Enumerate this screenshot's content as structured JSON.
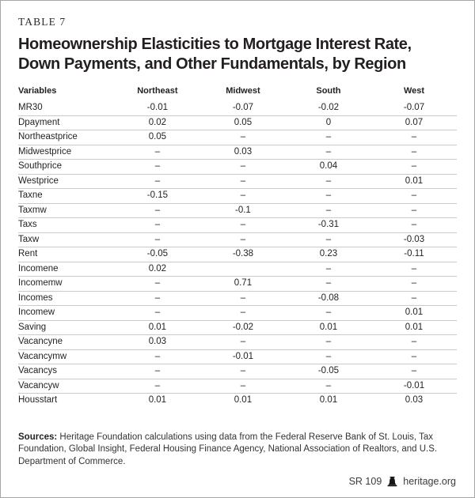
{
  "header": {
    "table_label": "TABLE 7",
    "title": "Homeownership Elasticities to Mortgage Interest Rate, Down Payments, and Other Fundamentals, by Region"
  },
  "chart_data": {
    "type": "table",
    "title": "Homeownership Elasticities to Mortgage Interest Rate, Down Payments, and Other Fundamentals, by Region",
    "columns": [
      "Variables",
      "Northeast",
      "Midwest",
      "South",
      "West"
    ],
    "rows": [
      {
        "variable": "MR30",
        "values": [
          "-0.01",
          "-0.07",
          "-0.02",
          "-0.07"
        ]
      },
      {
        "variable": "Dpayment",
        "values": [
          "0.02",
          "0.05",
          "0",
          "0.07"
        ]
      },
      {
        "variable": "Northeastprice",
        "values": [
          "0.05",
          "–",
          "–",
          "–"
        ]
      },
      {
        "variable": "Midwestprice",
        "values": [
          "–",
          "0.03",
          "–",
          "–"
        ]
      },
      {
        "variable": "Southprice",
        "values": [
          "–",
          "–",
          "0.04",
          "–"
        ]
      },
      {
        "variable": "Westprice",
        "values": [
          "–",
          "–",
          "–",
          "0.01"
        ]
      },
      {
        "variable": "Taxne",
        "values": [
          "-0.15",
          "–",
          "–",
          "–"
        ]
      },
      {
        "variable": "Taxmw",
        "values": [
          "–",
          "-0.1",
          "–",
          "–"
        ]
      },
      {
        "variable": "Taxs",
        "values": [
          "–",
          "–",
          "-0.31",
          "–"
        ]
      },
      {
        "variable": "Taxw",
        "values": [
          "–",
          "–",
          "–",
          "-0.03"
        ]
      },
      {
        "variable": "Rent",
        "values": [
          "-0.05",
          "-0.38",
          "0.23",
          "-0.11"
        ]
      },
      {
        "variable": "Incomene",
        "values": [
          "0.02",
          "",
          "–",
          "–"
        ]
      },
      {
        "variable": "Incomemw",
        "values": [
          "–",
          "0.71",
          "–",
          "–"
        ]
      },
      {
        "variable": "Incomes",
        "values": [
          "–",
          "–",
          "-0.08",
          "–"
        ]
      },
      {
        "variable": "Incomew",
        "values": [
          "–",
          "–",
          "–",
          "0.01"
        ]
      },
      {
        "variable": "Saving",
        "values": [
          "0.01",
          "-0.02",
          "0.01",
          "0.01"
        ]
      },
      {
        "variable": "Vacancyne",
        "values": [
          "0.03",
          "–",
          "–",
          "–"
        ]
      },
      {
        "variable": "Vacancymw",
        "values": [
          "–",
          "-0.01",
          "–",
          "–"
        ]
      },
      {
        "variable": "Vacancys",
        "values": [
          "–",
          "–",
          "-0.05",
          "–"
        ]
      },
      {
        "variable": "Vacancyw",
        "values": [
          "–",
          "–",
          "–",
          "-0.01"
        ]
      },
      {
        "variable": "Housstart",
        "values": [
          "0.01",
          "0.01",
          "0.01",
          "0.03"
        ]
      }
    ]
  },
  "sources": {
    "label": "Sources:",
    "text": "Heritage Foundation calculations using data from the Federal Reserve Bank of St. Louis, Tax Foundation, Global Insight, Federal Housing Finance Agency, National Association of Realtors, and U.S. Department of Commerce."
  },
  "footer": {
    "report_id": "SR 109",
    "site": "heritage.org"
  },
  "colors": {
    "text": "#231f20",
    "row_line": "#cacaca",
    "page_border": "#a6a6a6",
    "bell_icon": "#161616"
  }
}
